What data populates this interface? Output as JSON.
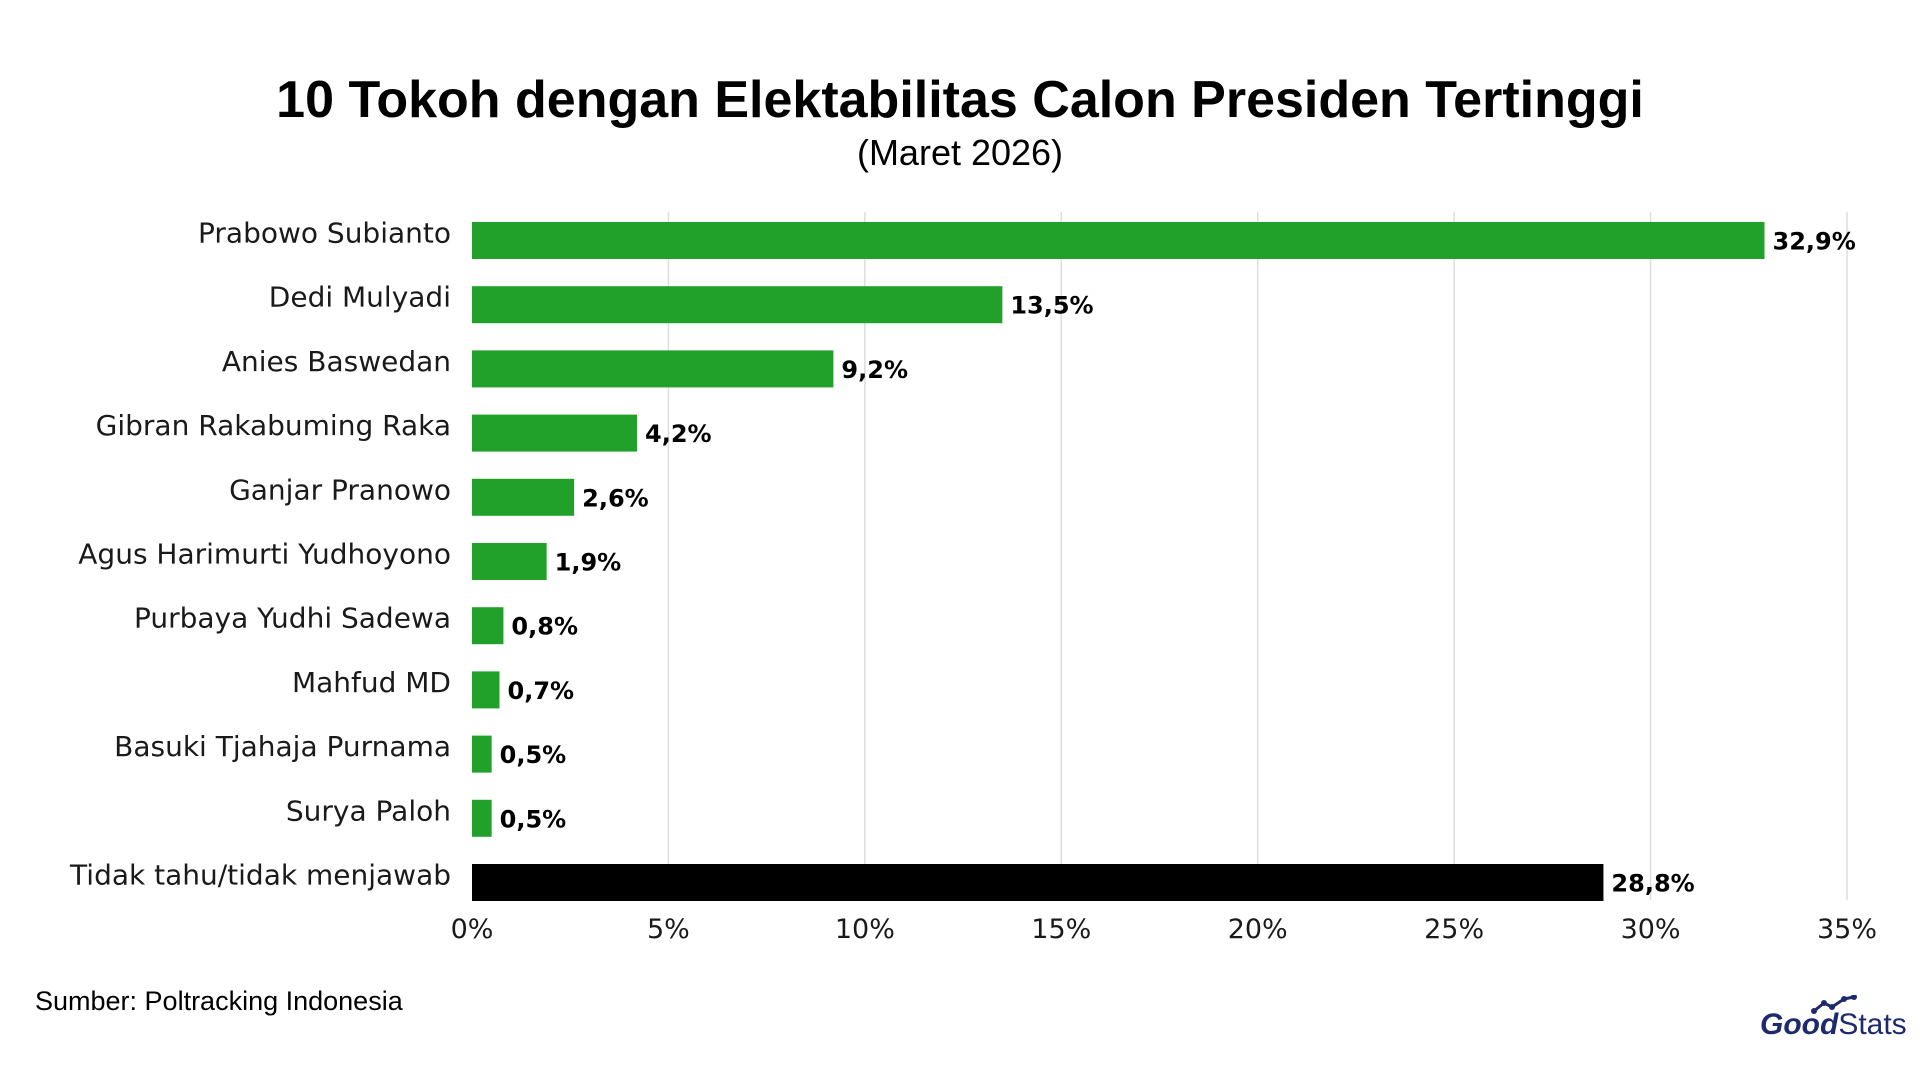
{
  "chart_data": {
    "type": "bar",
    "orientation": "horizontal",
    "title": "10 Tokoh dengan Elektabilitas Calon Presiden Tertinggi",
    "subtitle": "(Maret 2026)",
    "categories": [
      "Prabowo Subianto",
      "Dedi Mulyadi",
      "Anies Baswedan",
      "Gibran Rakabuming Raka",
      "Ganjar Pranowo",
      "Agus Harimurti Yudhoyono",
      "Purbaya Yudhi Sadewa",
      "Mahfud MD",
      "Basuki Tjahaja Purnama",
      "Surya Paloh",
      "Tidak tahu/tidak menjawab"
    ],
    "values": [
      32.9,
      13.5,
      9.2,
      4.2,
      2.6,
      1.9,
      0.8,
      0.7,
      0.5,
      0.5,
      28.8
    ],
    "value_labels": [
      "32,9%",
      "13,5%",
      "9,2%",
      "4,2%",
      "2,6%",
      "1,9%",
      "0,8%",
      "0,7%",
      "0,5%",
      "0,5%",
      "28,8%"
    ],
    "bar_colors": [
      "#22a12a",
      "#22a12a",
      "#22a12a",
      "#22a12a",
      "#22a12a",
      "#22a12a",
      "#22a12a",
      "#22a12a",
      "#22a12a",
      "#22a12a",
      "#000000"
    ],
    "xlim": [
      0,
      35
    ],
    "xticks": [
      0,
      5,
      10,
      15,
      20,
      25,
      30,
      35
    ],
    "xtick_labels": [
      "0%",
      "5%",
      "10%",
      "15%",
      "20%",
      "25%",
      "30%",
      "35%"
    ],
    "grid": "vertical",
    "grid_color": "#dddddd",
    "xlabel": "",
    "ylabel": ""
  },
  "source": "Sumber: Poltracking Indonesia",
  "brand": {
    "part1": "Good",
    "part2": "Stats",
    "color": "#1f2a6e",
    "icon": "trend-line-icon"
  }
}
